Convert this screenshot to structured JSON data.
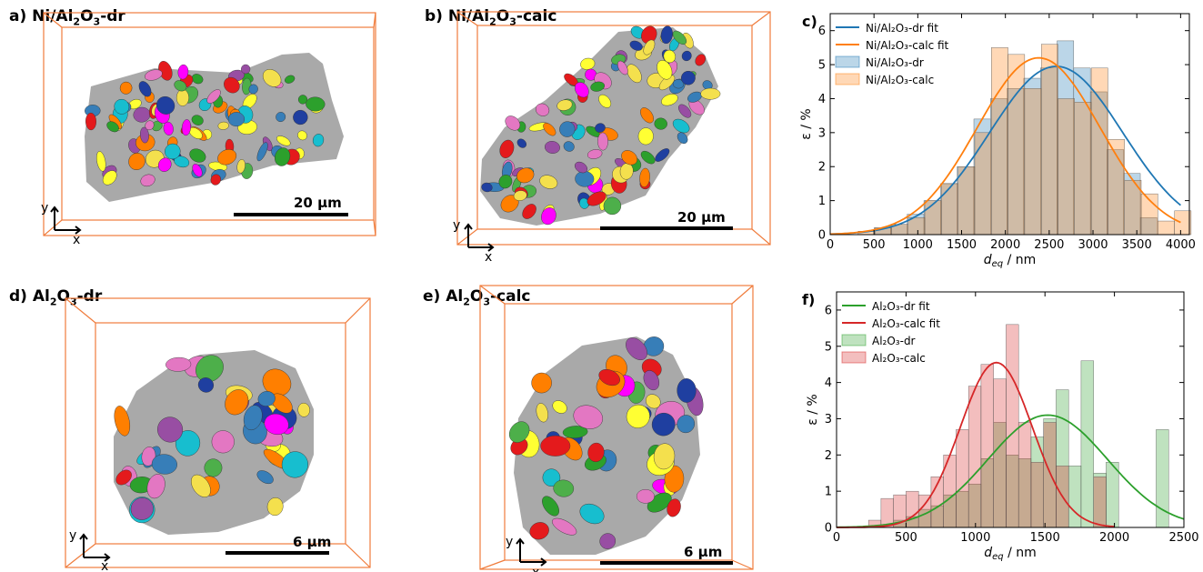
{
  "panels": {
    "a": {
      "letter": "a)",
      "name_pre": "Ni/Al",
      "name_sub1": "2",
      "name_mid": "O",
      "name_sub2": "3",
      "name_post": "-dr",
      "scalebar": "20 µm",
      "axis_x": "x",
      "axis_y": "y"
    },
    "b": {
      "letter": "b)",
      "name_pre": "Ni/Al",
      "name_sub1": "2",
      "name_mid": "O",
      "name_sub2": "3",
      "name_post": "-calc",
      "scalebar": "20 µm",
      "axis_x": "x",
      "axis_y": "y"
    },
    "d": {
      "letter": "d)",
      "name_pre": "Al",
      "name_sub1": "2",
      "name_mid": "O",
      "name_sub2": "3",
      "name_post": "-dr",
      "scalebar": "6 µm",
      "axis_x": "x",
      "axis_y": "y"
    },
    "e": {
      "letter": "e)",
      "name_pre": "Al",
      "name_sub1": "2",
      "name_mid": "O",
      "name_sub2": "3",
      "name_post": "-calc",
      "scalebar": "6 µm",
      "axis_x": "x",
      "axis_y": "y"
    }
  },
  "colors": {
    "box_orange": "#f07c3c",
    "grain_gray": "#a9a9a9",
    "pore_palette": [
      "#e41a1c",
      "#377eb8",
      "#4daf4a",
      "#984ea3",
      "#ff7f00",
      "#ffff33",
      "#17becf",
      "#e377c2",
      "#2ca02c",
      "#1f3fa0",
      "#ff00ff",
      "#f4e04d"
    ]
  },
  "chart_data": [
    {
      "type": "bar",
      "panel_letter": "c)",
      "xlabel_main": "d",
      "xlabel_sub": "eq",
      "xlabel_unit": " / nm",
      "ylabel": "ε / %",
      "xlim": [
        0,
        4100
      ],
      "ylim": [
        0,
        6.5
      ],
      "xticks": [
        0,
        500,
        1000,
        1500,
        2000,
        2500,
        3000,
        3500,
        4000
      ],
      "yticks": [
        0,
        1,
        2,
        3,
        4,
        5,
        6
      ],
      "legend_position": "top-left",
      "legend": [
        {
          "label": "Ni/Al₂O₃-dr fit",
          "kind": "line",
          "color": "#1f77b4"
        },
        {
          "label": "Ni/Al₂O₃-calc fit",
          "kind": "line",
          "color": "#ff7f0e"
        },
        {
          "label": "Ni/Al₂O₃-dr",
          "kind": "patch",
          "color": "#1f77b4"
        },
        {
          "label": "Ni/Al₂O₃-calc",
          "kind": "patch",
          "color": "#ff7f0e"
        }
      ],
      "bin_width": 190,
      "series": [
        {
          "name": "Ni/Al₂O₃-dr",
          "color": "#1f77b4",
          "bin_starts": [
            500,
            690,
            880,
            1070,
            1260,
            1450,
            1640,
            1830,
            2020,
            2210,
            2400,
            2590,
            2780,
            2970,
            3160,
            3350,
            3540
          ],
          "values": [
            0.2,
            0.3,
            0.6,
            1.0,
            1.5,
            2.0,
            3.4,
            4.0,
            4.3,
            4.6,
            4.9,
            5.7,
            4.9,
            4.2,
            2.5,
            1.8,
            0.5
          ]
        },
        {
          "name": "Ni/Al₂O₃-calc",
          "color": "#ff7f0e",
          "bin_starts": [
            320,
            510,
            700,
            890,
            1080,
            1270,
            1460,
            1650,
            1840,
            2030,
            2220,
            2410,
            2600,
            2790,
            2980,
            3170,
            3360,
            3550,
            3740,
            3930
          ],
          "values": [
            0.1,
            0.2,
            0.3,
            0.5,
            1.0,
            1.5,
            2.0,
            3.0,
            5.5,
            5.3,
            4.3,
            5.6,
            4.0,
            3.9,
            4.9,
            2.8,
            1.6,
            1.2,
            0.4,
            0.7
          ]
        }
      ],
      "fits": [
        {
          "name": "Ni/Al₂O₃-dr fit",
          "color": "#1f77b4",
          "x_range": [
            0,
            4000
          ],
          "peak": 4.95,
          "mu": 2580,
          "sigma": 760
        },
        {
          "name": "Ni/Al₂O₃-calc fit",
          "color": "#ff7f0e",
          "x_range": [
            0,
            4000
          ],
          "peak": 5.2,
          "mu": 2380,
          "sigma": 700
        }
      ]
    },
    {
      "type": "bar",
      "panel_letter": "f)",
      "xlabel_main": "d",
      "xlabel_sub": "eq",
      "xlabel_unit": " / nm",
      "ylabel": "ε / %",
      "xlim": [
        0,
        2500
      ],
      "ylim": [
        0,
        6.5
      ],
      "xticks": [
        0,
        500,
        1000,
        1500,
        2000,
        2500
      ],
      "yticks": [
        0,
        1,
        2,
        3,
        4,
        5,
        6
      ],
      "legend_position": "top-left",
      "legend": [
        {
          "label": "Al₂O₃-dr fit",
          "kind": "line",
          "color": "#2ca02c"
        },
        {
          "label": "Al₂O₃-calc fit",
          "kind": "line",
          "color": "#d62728"
        },
        {
          "label": "Al₂O₃-dr",
          "kind": "patch",
          "color": "#2ca02c"
        },
        {
          "label": "Al₂O₃-calc",
          "kind": "patch",
          "color": "#d62728"
        }
      ],
      "bin_width": 90,
      "series": [
        {
          "name": "Al₂O₃-dr",
          "color": "#2ca02c",
          "bin_starts": [
            410,
            500,
            590,
            680,
            770,
            860,
            950,
            1040,
            1130,
            1220,
            1310,
            1400,
            1490,
            1580,
            1670,
            1760,
            1850,
            1940,
            2030,
            2120,
            2210,
            2300
          ],
          "values": [
            0.2,
            0.3,
            0.5,
            0.6,
            0.9,
            1.0,
            1.2,
            1.9,
            2.9,
            2.0,
            1.9,
            2.5,
            3.0,
            3.8,
            1.7,
            4.6,
            1.5,
            1.8,
            0,
            0,
            0,
            2.7
          ]
        },
        {
          "name": "Al₂O₃-calc",
          "color": "#d62728",
          "bin_starts": [
            230,
            320,
            410,
            500,
            590,
            680,
            770,
            860,
            950,
            1040,
            1130,
            1220,
            1310,
            1400,
            1490,
            1580,
            1670,
            1760,
            1850,
            1940
          ],
          "values": [
            0.2,
            0.8,
            0.9,
            1.0,
            0.9,
            1.4,
            2.0,
            2.7,
            3.9,
            4.5,
            4.1,
            5.6,
            2.9,
            1.8,
            2.9,
            1.7,
            0,
            0,
            1.4,
            0
          ]
        }
      ],
      "fits": [
        {
          "name": "Al₂O₃-dr fit",
          "color": "#2ca02c",
          "x_range": [
            0,
            2500
          ],
          "peak": 3.1,
          "mu": 1520,
          "sigma": 430
        },
        {
          "name": "Al₂O₃-calc fit",
          "color": "#d62728",
          "x_range": [
            0,
            2000
          ],
          "peak": 4.55,
          "mu": 1150,
          "sigma": 260
        }
      ]
    }
  ]
}
